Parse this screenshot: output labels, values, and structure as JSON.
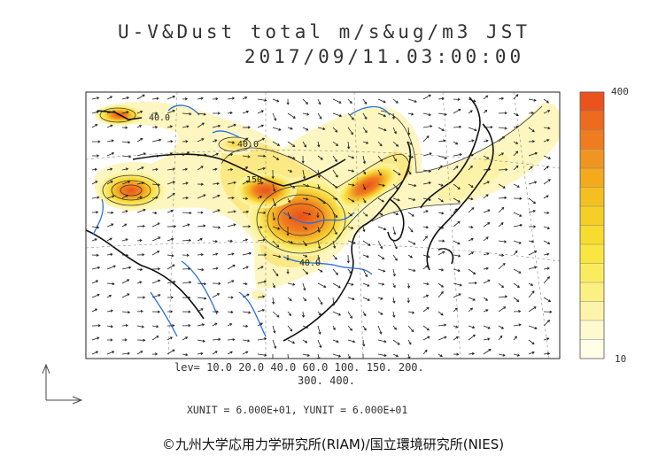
{
  "header": {
    "title_line1": "U-V&Dust total m/s&ug/m3 JST",
    "title_line2": "2017/09/11.03:00:00"
  },
  "colorbar": {
    "max_label": "400",
    "min_label": "10",
    "colors": [
      "#ffffe8",
      "#fefad0",
      "#fdf4ab",
      "#fcf083",
      "#fbec5f",
      "#f9e641",
      "#f7db2e",
      "#f5cf28",
      "#f4bf20",
      "#f3ab1c",
      "#f19522",
      "#ef7d1f",
      "#ed6a1e",
      "#ea541c"
    ]
  },
  "levels": {
    "line1": "lev= 10.0 20.0 40.0 60.0 100. 150. 200.",
    "line2": "300. 400."
  },
  "contour_labels": {
    "a": "40.0",
    "b": "40.0",
    "c": "150",
    "d": "40.0"
  },
  "units": {
    "text": "XUNIT = 6.000E+01, YUNIT = 6.000E+01"
  },
  "footer": {
    "copyright": "©九州大学応用力学研究所(RIAM)/国立環境研究所(NIES)"
  }
}
